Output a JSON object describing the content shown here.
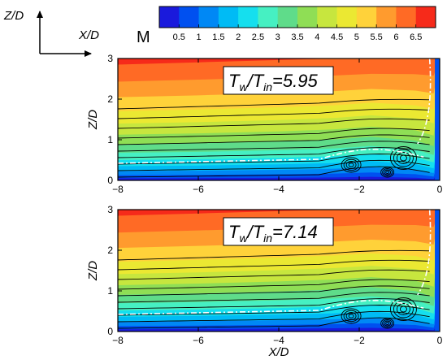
{
  "chart_data": {
    "type": "heatmap",
    "variable": "M",
    "colorbar": {
      "label": "M",
      "ticks": [
        "0.5",
        "1",
        "1.5",
        "2",
        "2.5",
        "3",
        "3.5",
        "4",
        "4.5",
        "5",
        "5.5",
        "6",
        "6.5"
      ],
      "colors": [
        "#1a1adc",
        "#0050f0",
        "#0088f5",
        "#00bbf5",
        "#15dfee",
        "#46f0c2",
        "#5fdc8a",
        "#8fde55",
        "#c7e63e",
        "#ebe832",
        "#ffd23a",
        "#ff9b2e",
        "#ff6a25",
        "#f62a1a"
      ]
    },
    "orientation": {
      "vertical_label": "Z/D",
      "horizontal_label": "X/D"
    },
    "panels": [
      {
        "annotation": {
          "var": "T",
          "sub1": "w",
          "sep": "/T",
          "sub2": "in",
          "value": "=5.95"
        },
        "xlim": [
          -8,
          0
        ],
        "ylim": [
          0,
          3
        ],
        "xticks": [
          "-8",
          "-6",
          "-4",
          "-2",
          "0"
        ],
        "yticks": [
          "0",
          "1",
          "2",
          "3"
        ],
        "ylabel": "Z/D",
        "xlabel": "",
        "boundary_layer_edge_z": [
          0.45,
          0.5,
          0.6,
          0.72,
          0.9,
          0.6,
          0.2
        ],
        "shock_foot_x": -1.7
      },
      {
        "annotation": {
          "var": "T",
          "sub1": "w",
          "sep": "/T",
          "sub2": "in",
          "value": "=7.14"
        },
        "xlim": [
          -8,
          0
        ],
        "ylim": [
          0,
          3
        ],
        "xticks": [
          "-8",
          "-6",
          "-4",
          "-2",
          "0"
        ],
        "yticks": [
          "0",
          "1",
          "2",
          "3"
        ],
        "ylabel": "Z/D",
        "xlabel": "X/D",
        "boundary_layer_edge_z": [
          0.5,
          0.57,
          0.68,
          0.8,
          0.95,
          0.65,
          0.2
        ],
        "shock_foot_x": -1.6
      }
    ]
  }
}
